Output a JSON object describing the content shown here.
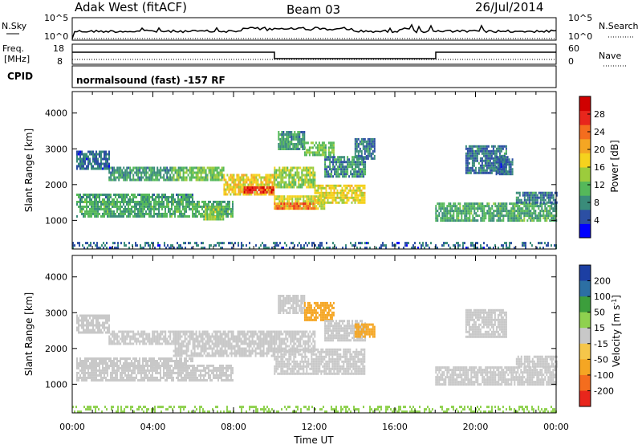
{
  "header": {
    "station": "Adak West (fitACF)",
    "beam": "Beam 03",
    "date": "26/Jul/2014"
  },
  "summary_panels": {
    "nsky": {
      "label": "N.Sky",
      "tick_top": "10^5",
      "tick_bottom": "10^0"
    },
    "nsearch": {
      "label": "N.Search",
      "tick_top": "10^5",
      "tick_bottom": "10^0"
    },
    "freq": {
      "label_line1": "Freq.",
      "label_line2": "[MHz]",
      "tick_top": "18",
      "tick_bottom": "8"
    },
    "nave": {
      "label": "Nave",
      "tick_top": "60",
      "tick_bottom": "0"
    },
    "cpid": {
      "label": "CPID",
      "text": "normalsound (fast) -157 RF"
    }
  },
  "colors": {
    "power": [
      "#0000ff",
      "#2c4fa3",
      "#3a8c7a",
      "#55b85a",
      "#9ccc3c",
      "#f5d21e",
      "#f5a623",
      "#f46d1e",
      "#e8261c",
      "#d00000"
    ],
    "velocity": [
      "#e8261c",
      "#f46d1e",
      "#f5a623",
      "#f5c64a",
      "#c8c8c8",
      "#8fd14f",
      "#3c9e3c",
      "#2c6fa3",
      "#1c3fa3"
    ]
  },
  "chart_data": [
    {
      "type": "heatmap",
      "name": "power",
      "ylabel": "Slant Range [km]",
      "ylim": [
        200,
        4600
      ],
      "yticks": [
        1000,
        2000,
        3000,
        4000
      ],
      "xlim": [
        0,
        24
      ],
      "colorbar_label": "Power [dB]",
      "colorbar_ticks": [
        4,
        8,
        12,
        16,
        20,
        24,
        28
      ],
      "colorbar_range": [
        0,
        32
      ],
      "bands": [
        {
          "t0": 0.2,
          "t1": 1.8,
          "r0": 2450,
          "r1": 2950,
          "v": 6
        },
        {
          "t0": 1.8,
          "t1": 5.0,
          "r0": 2150,
          "r1": 2500,
          "v": 9
        },
        {
          "t0": 5.0,
          "t1": 7.5,
          "r0": 2100,
          "r1": 2500,
          "v": 12
        },
        {
          "t0": 7.5,
          "t1": 10.0,
          "r0": 1700,
          "r1": 2300,
          "v": 18
        },
        {
          "t0": 8.5,
          "t1": 10.0,
          "r0": 1750,
          "r1": 1950,
          "v": 27
        },
        {
          "t0": 0.2,
          "t1": 6.0,
          "r0": 1500,
          "r1": 1750,
          "v": 9
        },
        {
          "t0": 0.2,
          "t1": 8.0,
          "r0": 1100,
          "r1": 1550,
          "v": 10
        },
        {
          "t0": 6.5,
          "t1": 7.5,
          "r0": 1000,
          "r1": 1400,
          "v": 14
        },
        {
          "t0": 10.0,
          "t1": 12.5,
          "r0": 1300,
          "r1": 1700,
          "v": 16
        },
        {
          "t0": 10.0,
          "t1": 12.0,
          "r0": 1350,
          "r1": 1500,
          "v": 24
        },
        {
          "t0": 12.0,
          "t1": 14.5,
          "r0": 1500,
          "r1": 2000,
          "v": 17
        },
        {
          "t0": 10.0,
          "t1": 12.0,
          "r0": 1950,
          "r1": 2500,
          "v": 14
        },
        {
          "t0": 10.2,
          "t1": 11.5,
          "r0": 3000,
          "r1": 3500,
          "v": 9
        },
        {
          "t0": 11.5,
          "t1": 13.0,
          "r0": 2800,
          "r1": 3200,
          "v": 12
        },
        {
          "t0": 12.5,
          "t1": 14.5,
          "r0": 2200,
          "r1": 2800,
          "v": 8
        },
        {
          "t0": 14.0,
          "t1": 15.0,
          "r0": 2700,
          "r1": 3300,
          "v": 7
        },
        {
          "t0": 19.5,
          "t1": 21.5,
          "r0": 2300,
          "r1": 3100,
          "v": 7
        },
        {
          "t0": 21.0,
          "t1": 21.8,
          "r0": 2300,
          "r1": 2800,
          "v": 6
        },
        {
          "t0": 18.0,
          "t1": 24.0,
          "r0": 1000,
          "r1": 1500,
          "v": 10
        },
        {
          "t0": 22.0,
          "t1": 24.0,
          "r0": 1500,
          "r1": 1800,
          "v": 7
        },
        {
          "t0": 0.0,
          "t1": 24.0,
          "r0": 220,
          "r1": 400,
          "v": 6
        }
      ]
    },
    {
      "type": "heatmap",
      "name": "velocity",
      "ylabel": "Slant Range [km]",
      "ylim": [
        200,
        4600
      ],
      "yticks": [
        1000,
        2000,
        3000,
        4000
      ],
      "xlim": [
        0,
        24
      ],
      "xlabel": "Time UT",
      "xtick_labels": [
        "00:00",
        "04:00",
        "08:00",
        "12:00",
        "16:00",
        "20:00",
        "00:00"
      ],
      "colorbar_label": "Velocity [m s^-1]",
      "colorbar_ticks": [
        "200",
        "100",
        "50",
        "15",
        "-15",
        "-50",
        "-100",
        "-200"
      ],
      "bands": [
        {
          "t0": 0.2,
          "t1": 1.8,
          "r0": 2450,
          "r1": 2950,
          "v": 0
        },
        {
          "t0": 1.8,
          "t1": 5.0,
          "r0": 2150,
          "r1": 2500,
          "v": 0
        },
        {
          "t0": 5.0,
          "t1": 10.0,
          "r0": 1800,
          "r1": 2500,
          "v": 0
        },
        {
          "t0": 0.2,
          "t1": 6.0,
          "r0": 1500,
          "r1": 1750,
          "v": 0
        },
        {
          "t0": 0.2,
          "t1": 8.0,
          "r0": 1100,
          "r1": 1550,
          "v": 0
        },
        {
          "t0": 10.0,
          "t1": 14.5,
          "r0": 1300,
          "r1": 2000,
          "v": 0
        },
        {
          "t0": 10.0,
          "t1": 12.0,
          "r0": 1950,
          "r1": 2500,
          "v": 0
        },
        {
          "t0": 10.2,
          "t1": 11.5,
          "r0": 3000,
          "r1": 3500,
          "v": 0
        },
        {
          "t0": 11.5,
          "t1": 13.0,
          "r0": 2800,
          "r1": 3300,
          "v": -40
        },
        {
          "t0": 12.5,
          "t1": 14.5,
          "r0": 2200,
          "r1": 2800,
          "v": 0
        },
        {
          "t0": 14.0,
          "t1": 15.0,
          "r0": 2300,
          "r1": 2700,
          "v": -40
        },
        {
          "t0": 19.5,
          "t1": 21.5,
          "r0": 2300,
          "r1": 3100,
          "v": 0
        },
        {
          "t0": 18.0,
          "t1": 24.0,
          "r0": 1000,
          "r1": 1500,
          "v": 0
        },
        {
          "t0": 22.0,
          "t1": 24.0,
          "r0": 1500,
          "r1": 1800,
          "v": 0
        },
        {
          "t0": 0.0,
          "t1": 24.0,
          "r0": 220,
          "r1": 400,
          "v": 20
        }
      ]
    }
  ]
}
